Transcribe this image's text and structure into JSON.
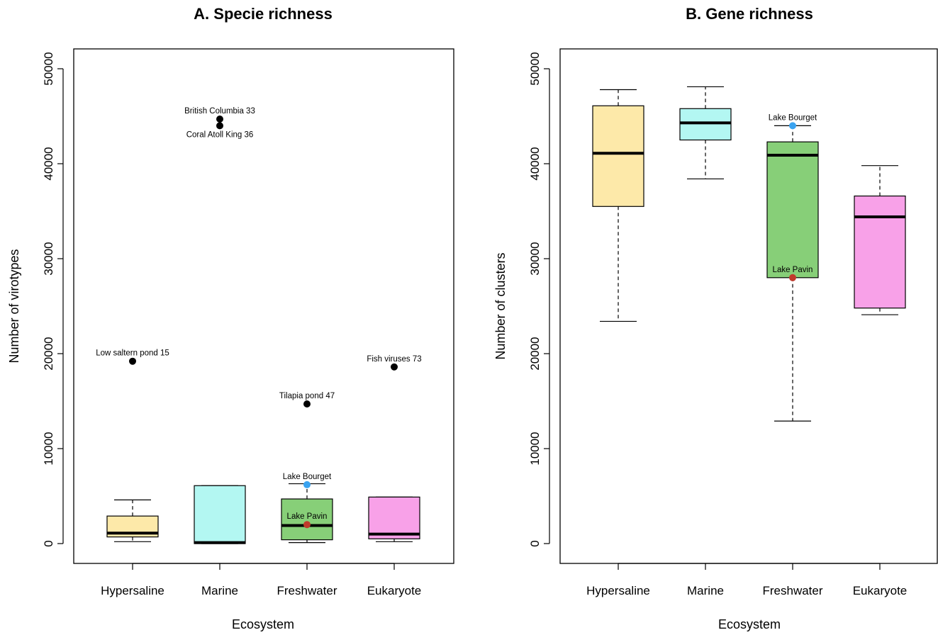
{
  "chart_data": [
    {
      "type": "boxplot",
      "title": "A. Specie richness",
      "xlabel": "Ecosystem",
      "ylabel": "Number of virotypes",
      "ylim": [
        -2000,
        52000
      ],
      "yticks": [
        0,
        10000,
        20000,
        30000,
        40000,
        50000
      ],
      "categories": [
        "Hypersaline",
        "Marine",
        "Freshwater",
        "Eukaryote"
      ],
      "boxes": [
        {
          "name": "Hypersaline",
          "color": "#fde9a9",
          "min": 200,
          "q1": 700,
          "median": 1100,
          "q3": 2900,
          "max": 4600
        },
        {
          "name": "Marine",
          "color": "#b3f7f2",
          "min": 0,
          "q1": 0,
          "median": 100,
          "q3": 6100,
          "max": 6100
        },
        {
          "name": "Freshwater",
          "color": "#87cf78",
          "min": 100,
          "q1": 400,
          "median": 1900,
          "q3": 4700,
          "max": 6300
        },
        {
          "name": "Eukaryote",
          "color": "#f8a1e8",
          "min": 200,
          "q1": 500,
          "median": 1000,
          "q3": 4900,
          "max": 4900
        }
      ],
      "points": [
        {
          "category": "Hypersaline",
          "y": 19200,
          "label": "Low saltern pond 15",
          "color": "#000000",
          "label_pos": "above"
        },
        {
          "category": "Marine",
          "y": 44700,
          "label": "British Columbia 33",
          "color": "#000000",
          "label_pos": "above"
        },
        {
          "category": "Marine",
          "y": 44000,
          "label": "Coral Atoll King 36",
          "color": "#000000",
          "label_pos": "below"
        },
        {
          "category": "Freshwater",
          "y": 14700,
          "label": "Tilapia pond 47",
          "color": "#000000",
          "label_pos": "above"
        },
        {
          "category": "Freshwater",
          "y": 6200,
          "label": "Lake Bourget",
          "color": "#3aa3f0",
          "label_pos": "above"
        },
        {
          "category": "Freshwater",
          "y": 2000,
          "label": "Lake Pavin",
          "color": "#c0392b",
          "label_pos": "above"
        },
        {
          "category": "Eukaryote",
          "y": 18600,
          "label": "Fish viruses 73",
          "color": "#000000",
          "label_pos": "above"
        }
      ]
    },
    {
      "type": "boxplot",
      "title": "B. Gene richness",
      "xlabel": "Ecosystem",
      "ylabel": "Number of clusters",
      "ylim": [
        -2000,
        52000
      ],
      "yticks": [
        0,
        10000,
        20000,
        30000,
        40000,
        50000
      ],
      "categories": [
        "Hypersaline",
        "Marine",
        "Freshwater",
        "Eukaryote"
      ],
      "boxes": [
        {
          "name": "Hypersaline",
          "color": "#fde9a9",
          "min": 23400,
          "q1": 35500,
          "median": 41100,
          "q3": 46100,
          "max": 47800
        },
        {
          "name": "Marine",
          "color": "#b3f7f2",
          "min": 38400,
          "q1": 42500,
          "median": 44300,
          "q3": 45800,
          "max": 48100
        },
        {
          "name": "Freshwater",
          "color": "#87cf78",
          "min": 12900,
          "q1": 28000,
          "median": 40900,
          "q3": 42300,
          "max": 44000
        },
        {
          "name": "Eukaryote",
          "color": "#f8a1e8",
          "min": 24100,
          "q1": 24800,
          "median": 34400,
          "q3": 36600,
          "max": 39800
        }
      ],
      "points": [
        {
          "category": "Freshwater",
          "y": 44000,
          "label": "Lake Bourget",
          "color": "#3aa3f0",
          "label_pos": "above"
        },
        {
          "category": "Freshwater",
          "y": 28000,
          "label": "Lake Pavin",
          "color": "#c0392b",
          "label_pos": "above"
        }
      ]
    }
  ]
}
